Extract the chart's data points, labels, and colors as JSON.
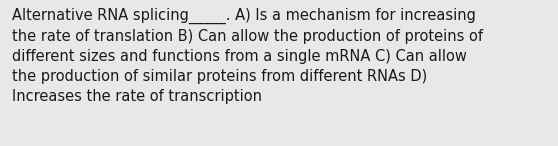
{
  "text": "Alternative RNA splicing_____. A) Is a mechanism for increasing\nthe rate of translation B) Can allow the production of proteins of\ndifferent sizes and functions from a single mRNA C) Can allow\nthe production of similar proteins from different RNAs D)\nIncreases the rate of transcription",
  "background_color": "#e8e8e8",
  "text_color": "#1a1a1a",
  "font_size": 10.5,
  "fig_width": 5.58,
  "fig_height": 1.46,
  "dpi": 100
}
